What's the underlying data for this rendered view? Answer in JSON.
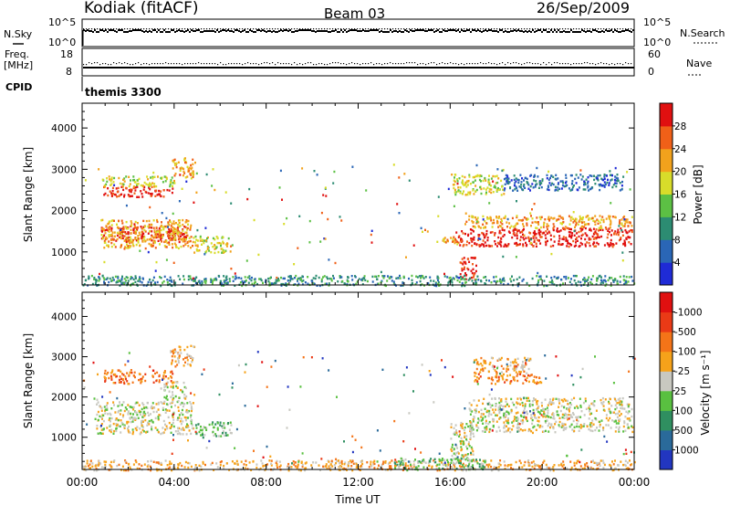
{
  "header": {
    "station": "Kodiak (fitACF)",
    "beam": "Beam 03",
    "date": "26/Sep/2009",
    "program": "themis 3300"
  },
  "status_panels": {
    "nsky_label": "N.Sky",
    "nsky_ticks": [
      "10^5",
      "10^0"
    ],
    "nsearch_label": "N.Search",
    "nsearch_ticks": [
      "10^5",
      "10^0"
    ],
    "freq_label": "Freq.",
    "freq_unit": "[MHz]",
    "freq_ticks": [
      "18",
      "8"
    ],
    "nave_label": "Nave",
    "nave_ticks": [
      "60",
      "0"
    ],
    "cpid_label": "CPID"
  },
  "chart_data": [
    {
      "type": "heatmap",
      "name": "power",
      "ylabel": "Slant Range [km]",
      "yticks": [
        1000,
        2000,
        3000,
        4000
      ],
      "ylim": [
        200,
        4600
      ],
      "x_ticks": [
        "00:00",
        "04:00",
        "08:00",
        "12:00",
        "16:00",
        "20:00",
        "00:00"
      ],
      "colorbar_label": "Power [dB]",
      "colorbar_ticks": [
        "4",
        "8",
        "12",
        "16",
        "20",
        "24",
        "28"
      ],
      "colorbar_colors": [
        "#1f2bd6",
        "#2a66b6",
        "#2c8c72",
        "#5cc044",
        "#d8dc2a",
        "#f2a21c",
        "#f06018",
        "#e01010"
      ],
      "regions": [
        {
          "t0": 0.8,
          "t1": 4.5,
          "r0": 1250,
          "r1": 1650,
          "level": 7
        },
        {
          "t0": 0.8,
          "t1": 4.8,
          "r0": 1100,
          "r1": 1800,
          "level": 5
        },
        {
          "t0": 0.9,
          "t1": 3.9,
          "r0": 2350,
          "r1": 2600,
          "level": 7
        },
        {
          "t0": 0.8,
          "t1": 4.0,
          "r0": 2600,
          "r1": 2850,
          "level": 4
        },
        {
          "t0": 3.9,
          "t1": 4.9,
          "r0": 2800,
          "r1": 3300,
          "level": 5
        },
        {
          "t0": 4.8,
          "t1": 6.5,
          "r0": 1000,
          "r1": 1400,
          "level": 4
        },
        {
          "t0": 16.2,
          "t1": 23.9,
          "r0": 1150,
          "r1": 1600,
          "level": 7
        },
        {
          "t0": 16.6,
          "t1": 23.9,
          "r0": 1600,
          "r1": 1900,
          "level": 5
        },
        {
          "t0": 15.4,
          "t1": 16.5,
          "r0": 1200,
          "r1": 1400,
          "level": 5
        },
        {
          "t0": 16.4,
          "t1": 17.1,
          "r0": 300,
          "r1": 900,
          "level": 7
        },
        {
          "t0": 16.1,
          "t1": 18.3,
          "r0": 2400,
          "r1": 2900,
          "level": 4
        },
        {
          "t0": 18.3,
          "t1": 23.5,
          "r0": 2500,
          "r1": 2900,
          "level": 1
        },
        {
          "t0": 0.0,
          "t1": 24.0,
          "r0": 200,
          "r1": 450,
          "level": 2
        }
      ]
    },
    {
      "type": "heatmap",
      "name": "velocity",
      "ylabel": "Slant Range [km]",
      "yticks": [
        1000,
        2000,
        3000,
        4000
      ],
      "ylim": [
        200,
        4600
      ],
      "x_ticks": [
        "00:00",
        "04:00",
        "08:00",
        "12:00",
        "16:00",
        "20:00",
        "00:00"
      ],
      "xlabel": "Time UT",
      "colorbar_label": "Velocity [m s⁻¹]",
      "colorbar_ticks": [
        "1000",
        "500",
        "100",
        "25",
        "-25",
        "-100",
        "-500",
        "-1000"
      ],
      "colorbar_colors": [
        "#2236c0",
        "#2a6a9a",
        "#2f8f60",
        "#59c040",
        "#c8c8c0",
        "#f6a21a",
        "#f47418",
        "#ea3a16",
        "#e01010"
      ],
      "regions": [
        {
          "t0": 0.6,
          "t1": 4.8,
          "r0": 1100,
          "r1": 1900,
          "level": 4
        },
        {
          "t0": 3.5,
          "t1": 4.5,
          "r0": 1900,
          "r1": 2400,
          "level": 4
        },
        {
          "t0": 0.9,
          "t1": 3.9,
          "r0": 2350,
          "r1": 2700,
          "level": 6
        },
        {
          "t0": 3.8,
          "t1": 4.9,
          "r0": 2800,
          "r1": 3300,
          "level": 5
        },
        {
          "t0": 4.9,
          "t1": 6.5,
          "r0": 1000,
          "r1": 1400,
          "level": 3
        },
        {
          "t0": 16.8,
          "t1": 23.9,
          "r0": 1150,
          "r1": 2000,
          "level": 4
        },
        {
          "t0": 16.0,
          "t1": 17.0,
          "r0": 400,
          "r1": 1400,
          "level": 4
        },
        {
          "t0": 17.0,
          "t1": 20.0,
          "r0": 2350,
          "r1": 2600,
          "level": 6
        },
        {
          "t0": 17.0,
          "t1": 19.5,
          "r0": 2600,
          "r1": 3000,
          "level": 5
        },
        {
          "t0": 0.0,
          "t1": 24.0,
          "r0": 200,
          "r1": 450,
          "level": 5
        },
        {
          "t0": 13.5,
          "t1": 17.5,
          "r0": 200,
          "r1": 500,
          "level": 3
        }
      ]
    }
  ]
}
